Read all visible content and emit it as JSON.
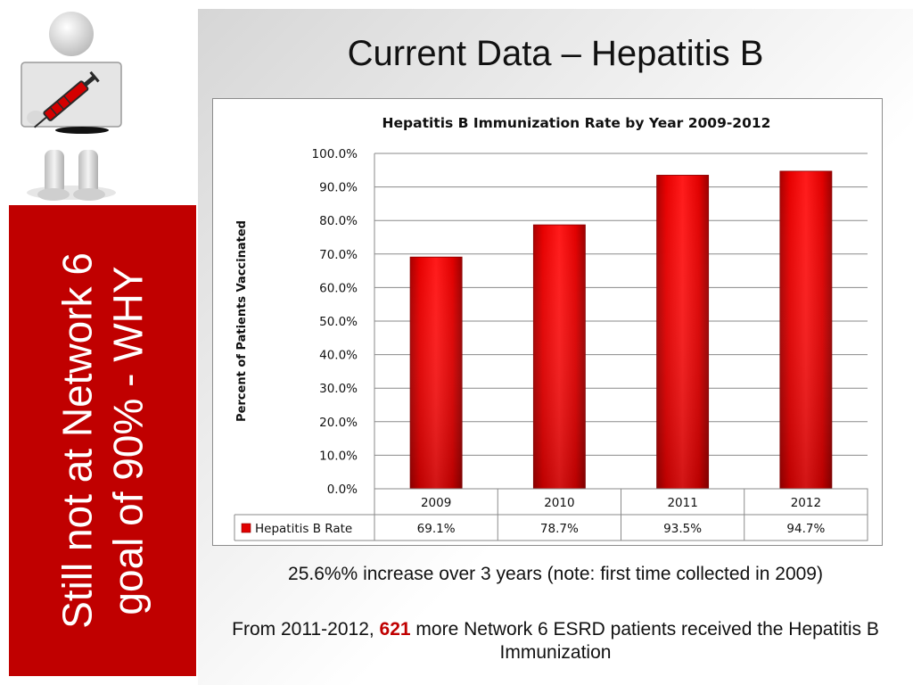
{
  "slide": {
    "title": "Current Data – Hepatitis B",
    "side_text": "Still not at Network 6 goal of 90% - WHY",
    "note": "25.6%% increase over 3 years (note:  first time collected in 2009)",
    "summary_prefix": "From 2011-2012, ",
    "summary_highlight": "621",
    "summary_suffix": " more Network 6 ESRD patients received the Hepatitis B Immunization",
    "colors": {
      "accent": "#c00000",
      "bar": "#e00000",
      "highlight": "#c00000"
    }
  },
  "chart_data": {
    "type": "bar",
    "title": "Hepatitis B Immunization Rate by Year 2009-2012",
    "ylabel": "Percent of Patients Vaccinated",
    "xlabel": "",
    "categories": [
      "2009",
      "2010",
      "2011",
      "2012"
    ],
    "series": [
      {
        "name": "Hepatitis B Rate",
        "values": [
          69.1,
          78.7,
          93.5,
          94.7
        ],
        "labels": [
          "69.1%",
          "78.7%",
          "93.5%",
          "94.7%"
        ]
      }
    ],
    "ylim": [
      0,
      100
    ],
    "yticks": [
      "0.0%",
      "10.0%",
      "20.0%",
      "30.0%",
      "40.0%",
      "50.0%",
      "60.0%",
      "70.0%",
      "80.0%",
      "90.0%",
      "100.0%"
    ],
    "grid": true,
    "legend": "data-table"
  }
}
